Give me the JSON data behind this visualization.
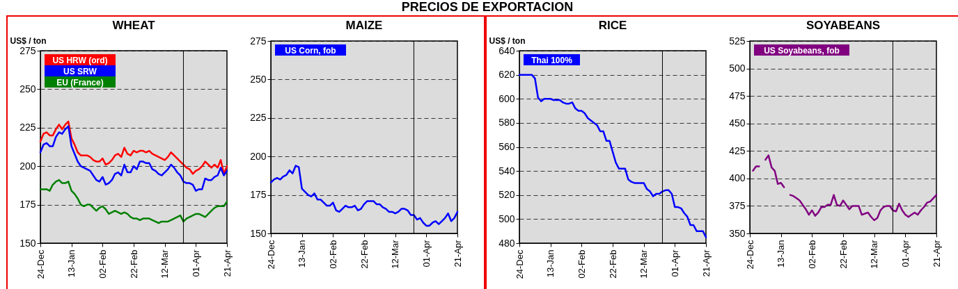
{
  "chart_data": [
    {
      "type": "line",
      "title": "WHEAT",
      "ylabel": "US$ / ton",
      "annotations": [
        "PRECIOS DE EXPORTACION"
      ],
      "legend": "top left",
      "grid": "y",
      "categories": [
        "24-Dec",
        null,
        null,
        null,
        null,
        null,
        null,
        null,
        null,
        null,
        "13-Jan",
        null,
        null,
        null,
        null,
        null,
        null,
        null,
        null,
        null,
        "02-Feb",
        null,
        null,
        null,
        null,
        null,
        null,
        null,
        null,
        null,
        "22-Feb",
        null,
        null,
        null,
        null,
        null,
        null,
        null,
        null,
        null,
        "12-Mar",
        null,
        null,
        null,
        null,
        null,
        null,
        null,
        null,
        null,
        "01-Apr",
        null,
        null,
        null,
        null,
        null,
        null,
        null,
        null,
        null,
        "21-Apr"
      ],
      "ylim": [
        150,
        275
      ],
      "yticks": [
        150,
        175,
        200,
        225,
        250,
        275
      ],
      "series": [
        {
          "name": "US HRW (ord)",
          "color": "#ff0000",
          "values": [
            216,
            221,
            222,
            220,
            220,
            224,
            227,
            224,
            227,
            229,
            218,
            214,
            209,
            207,
            207,
            207,
            206,
            204,
            203,
            203,
            205,
            201,
            202,
            204,
            207,
            208,
            206,
            212,
            208,
            207,
            210,
            209,
            210,
            210,
            209,
            210,
            208,
            207,
            206,
            205,
            204,
            206,
            209,
            207,
            205,
            203,
            201,
            199,
            198,
            195,
            197,
            198,
            200,
            203,
            201,
            199,
            201,
            199,
            204,
            195,
            200
          ]
        },
        {
          "name": "US SRW",
          "color": "#0000ff",
          "values": [
            209,
            214,
            215,
            213,
            213,
            219,
            222,
            221,
            224,
            226,
            213,
            208,
            203,
            200,
            199,
            198,
            197,
            194,
            191,
            190,
            193,
            188,
            189,
            191,
            195,
            196,
            194,
            201,
            196,
            196,
            200,
            198,
            203,
            203,
            202,
            202,
            198,
            197,
            195,
            194,
            196,
            198,
            201,
            199,
            196,
            194,
            190,
            189,
            189,
            188,
            184,
            185,
            185,
            192,
            191,
            191,
            193,
            194,
            199,
            194,
            197
          ]
        },
        {
          "name": "EU (France)",
          "color": "#008000",
          "values": [
            185,
            185,
            185,
            184,
            188,
            190,
            191,
            189,
            189,
            190,
            184,
            182,
            179,
            175,
            174,
            175,
            175,
            173,
            171,
            173,
            174,
            172,
            169,
            170,
            171,
            170,
            169,
            170,
            169,
            167,
            166,
            166,
            165,
            166,
            166,
            166,
            165,
            164,
            163,
            164,
            164,
            164,
            165,
            166,
            167,
            168,
            164,
            166,
            167,
            168,
            169,
            169,
            168,
            167,
            169,
            171,
            173,
            174,
            174,
            174,
            177
          ]
        }
      ]
    },
    {
      "type": "line",
      "title": "MAIZE",
      "legend": "top left",
      "grid": "y",
      "categories": [
        "24-Dec",
        null,
        null,
        null,
        null,
        null,
        null,
        null,
        null,
        null,
        "13-Jan",
        null,
        null,
        null,
        null,
        null,
        null,
        null,
        null,
        null,
        "02-Feb",
        null,
        null,
        null,
        null,
        null,
        null,
        null,
        null,
        null,
        "22-Feb",
        null,
        null,
        null,
        null,
        null,
        null,
        null,
        null,
        null,
        "12-Mar",
        null,
        null,
        null,
        null,
        null,
        null,
        null,
        null,
        null,
        "01-Apr",
        null,
        null,
        null,
        null,
        null,
        null,
        null,
        null,
        null,
        "21-Apr"
      ],
      "ylim": [
        150,
        275
      ],
      "yticks": [
        150,
        175,
        200,
        225,
        250,
        275
      ],
      "series": [
        {
          "name": "US Corn, fob",
          "color": "#0000ff",
          "values": [
            183,
            185,
            186,
            185,
            187,
            188,
            191,
            189,
            194,
            193,
            179,
            177,
            175,
            174,
            176,
            172,
            172,
            170,
            168,
            168,
            170,
            165,
            164,
            166,
            168,
            167,
            167,
            168,
            165,
            166,
            169,
            171,
            171,
            171,
            169,
            169,
            167,
            166,
            164,
            164,
            163,
            164,
            166,
            166,
            165,
            162,
            162,
            159,
            160,
            157,
            155,
            155,
            157,
            158,
            156,
            158,
            160,
            163,
            158,
            160,
            164
          ]
        }
      ]
    },
    {
      "type": "line",
      "title": "RICE",
      "ylabel": "US$ / ton",
      "legend": "top left",
      "grid": "y",
      "categories": [
        "24-Dec",
        null,
        null,
        null,
        null,
        null,
        null,
        null,
        null,
        null,
        "13-Jan",
        null,
        null,
        null,
        null,
        null,
        null,
        null,
        null,
        null,
        "02-Feb",
        null,
        null,
        null,
        null,
        null,
        null,
        null,
        null,
        null,
        "22-Feb",
        null,
        null,
        null,
        null,
        null,
        null,
        null,
        null,
        null,
        "12-Mar",
        null,
        null,
        null,
        null,
        null,
        null,
        null,
        null,
        null,
        "01-Apr",
        null,
        null,
        null,
        null,
        null,
        null,
        null,
        null,
        null,
        "21-Apr"
      ],
      "ylim": [
        480,
        640
      ],
      "yticks": [
        480,
        500,
        520,
        540,
        560,
        580,
        600,
        620,
        640
      ],
      "series": [
        {
          "name": "Thai 100%",
          "color": "#0000ff",
          "values": [
            620,
            620,
            620,
            620,
            620,
            617,
            601,
            598,
            600,
            600,
            600,
            599,
            599,
            599,
            597,
            596,
            596,
            597,
            592,
            590,
            590,
            588,
            584,
            582,
            580,
            578,
            573,
            573,
            565,
            565,
            556,
            547,
            542,
            542,
            542,
            533,
            531,
            530,
            530,
            530,
            530,
            525,
            523,
            519,
            521,
            521,
            523,
            524,
            524,
            521,
            510,
            510,
            509,
            505,
            502,
            495,
            495,
            490,
            490,
            490,
            485
          ]
        }
      ]
    },
    {
      "type": "line",
      "title": "SOYABEANS",
      "legend": "top left",
      "grid": "y",
      "categories": [
        "24-Dec",
        null,
        null,
        null,
        null,
        null,
        null,
        null,
        null,
        null,
        "13-Jan",
        null,
        null,
        null,
        null,
        null,
        null,
        null,
        null,
        null,
        "02-Feb",
        null,
        null,
        null,
        null,
        null,
        null,
        null,
        null,
        null,
        "22-Feb",
        null,
        null,
        null,
        null,
        null,
        null,
        null,
        null,
        null,
        "12-Mar",
        null,
        null,
        null,
        null,
        null,
        null,
        null,
        null,
        null,
        "01-Apr",
        null,
        null,
        null,
        null,
        null,
        null,
        null,
        null,
        null,
        "21-Apr"
      ],
      "ylim": [
        350,
        525
      ],
      "yticks": [
        350,
        375,
        400,
        425,
        450,
        475,
        500,
        525
      ],
      "series": [
        {
          "name": "US Soyabeans, fob",
          "color": "#800080",
          "values": [
            null,
            407,
            411,
            411,
            null,
            417,
            421,
            410,
            407,
            395,
            396,
            392,
            null,
            385,
            384,
            382,
            380,
            376,
            372,
            367,
            371,
            366,
            369,
            374,
            374,
            376,
            376,
            385,
            376,
            375,
            380,
            376,
            372,
            375,
            375,
            375,
            367,
            368,
            369,
            365,
            362,
            364,
            371,
            374,
            375,
            375,
            371,
            370,
            377,
            371,
            367,
            365,
            367,
            369,
            367,
            371,
            374,
            378,
            379,
            382,
            385
          ]
        }
      ]
    }
  ]
}
